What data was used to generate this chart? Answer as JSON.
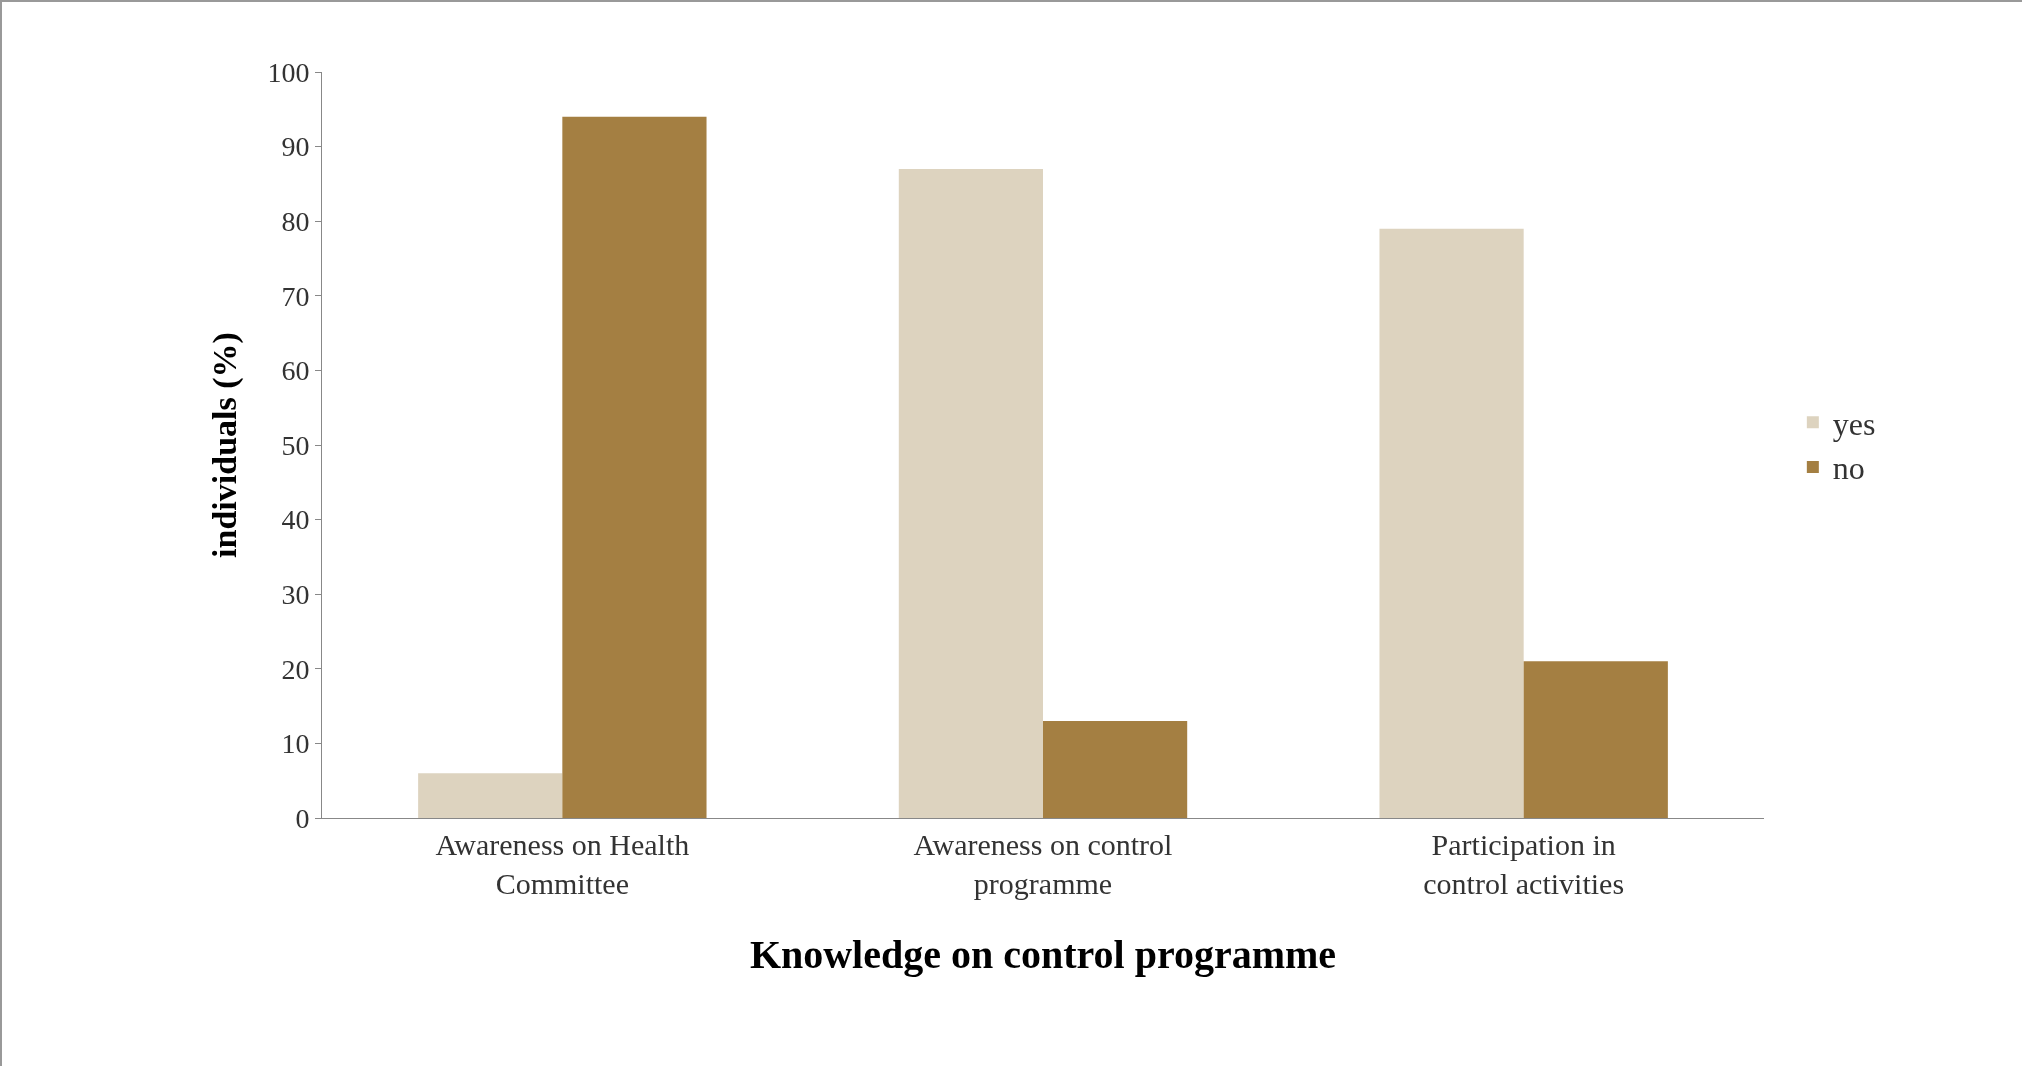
{
  "chart_data": {
    "type": "bar",
    "xlabel": "Knowledge on control programme",
    "ylabel": "individuals (%)",
    "categories": [
      "Awareness on Health Committee",
      "Awareness on control programme",
      "Participation in control activities"
    ],
    "series": [
      {
        "name": "yes",
        "color": "#ddd3bf",
        "values": [
          6,
          87,
          79
        ]
      },
      {
        "name": "no",
        "color": "#a47f42",
        "values": [
          94,
          13,
          21
        ]
      }
    ],
    "ylim": [
      0,
      100
    ],
    "yticks": [
      0,
      10,
      20,
      30,
      40,
      50,
      60,
      70,
      80,
      90,
      100
    ],
    "grid": false,
    "legend": "right"
  }
}
